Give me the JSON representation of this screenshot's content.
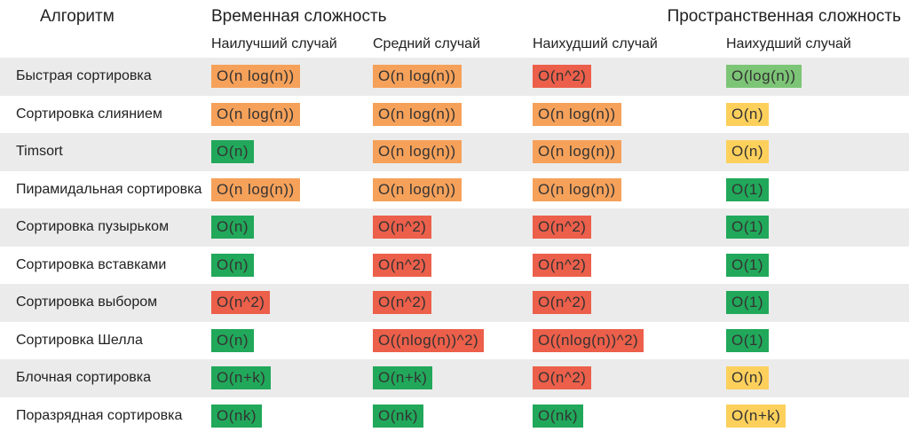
{
  "header": {
    "algorithm": "Алгоритм",
    "time": "Временная сложность",
    "space": "Пространственная сложность",
    "columns": [
      "Наилучший случай",
      "Средний случай",
      "Наихудший случай",
      "Наихудший случай"
    ]
  },
  "rows": [
    {
      "name": "Быстрая сортировка",
      "cells": [
        {
          "text": "O(n log(n))",
          "color": "#f6a15a"
        },
        {
          "text": "O(n log(n))",
          "color": "#f6a15a"
        },
        {
          "text": "O(n^2)",
          "color": "#ec5f4a"
        },
        {
          "text": "O(log(n))",
          "color": "#7cc576"
        }
      ]
    },
    {
      "name": "Сортировка слиянием",
      "cells": [
        {
          "text": "O(n log(n))",
          "color": "#f6a15a"
        },
        {
          "text": "O(n log(n))",
          "color": "#f6a15a"
        },
        {
          "text": "O(n log(n))",
          "color": "#f6a15a"
        },
        {
          "text": "O(n)",
          "color": "#fdd05c"
        }
      ]
    },
    {
      "name": "Timsort",
      "cells": [
        {
          "text": "O(n)",
          "color": "#21a85a"
        },
        {
          "text": "O(n log(n))",
          "color": "#f6a15a"
        },
        {
          "text": "O(n log(n))",
          "color": "#f6a15a"
        },
        {
          "text": "O(n)",
          "color": "#fdd05c"
        }
      ]
    },
    {
      "name": "Пирамидальная сортировка",
      "cells": [
        {
          "text": "O(n log(n))",
          "color": "#f6a15a"
        },
        {
          "text": "O(n log(n))",
          "color": "#f6a15a"
        },
        {
          "text": "O(n log(n))",
          "color": "#f6a15a"
        },
        {
          "text": "O(1)",
          "color": "#21a85a"
        }
      ]
    },
    {
      "name": "Сортировка пузырьком",
      "cells": [
        {
          "text": "O(n)",
          "color": "#21a85a"
        },
        {
          "text": "O(n^2)",
          "color": "#ec5f4a"
        },
        {
          "text": "O(n^2)",
          "color": "#ec5f4a"
        },
        {
          "text": "O(1)",
          "color": "#21a85a"
        }
      ]
    },
    {
      "name": "Сортировка вставками",
      "cells": [
        {
          "text": "O(n)",
          "color": "#21a85a"
        },
        {
          "text": "O(n^2)",
          "color": "#ec5f4a"
        },
        {
          "text": "O(n^2)",
          "color": "#ec5f4a"
        },
        {
          "text": "O(1)",
          "color": "#21a85a"
        }
      ]
    },
    {
      "name": "Сортировка выбором",
      "cells": [
        {
          "text": "O(n^2)",
          "color": "#ec5f4a"
        },
        {
          "text": "O(n^2)",
          "color": "#ec5f4a"
        },
        {
          "text": "O(n^2)",
          "color": "#ec5f4a"
        },
        {
          "text": "O(1)",
          "color": "#21a85a"
        }
      ]
    },
    {
      "name": "Сортировка Шелла",
      "cells": [
        {
          "text": "O(n)",
          "color": "#21a85a"
        },
        {
          "text": "O((nlog(n))^2)",
          "color": "#ec5f4a"
        },
        {
          "text": "O((nlog(n))^2)",
          "color": "#ec5f4a"
        },
        {
          "text": "O(1)",
          "color": "#21a85a"
        }
      ]
    },
    {
      "name": "Блочная сортировка",
      "cells": [
        {
          "text": "O(n+k)",
          "color": "#21a85a"
        },
        {
          "text": "O(n+k)",
          "color": "#21a85a"
        },
        {
          "text": "O(n^2)",
          "color": "#ec5f4a"
        },
        {
          "text": "O(n)",
          "color": "#fdd05c"
        }
      ]
    },
    {
      "name": "Поразрядная сортировка",
      "cells": [
        {
          "text": "O(nk)",
          "color": "#21a85a"
        },
        {
          "text": "O(nk)",
          "color": "#21a85a"
        },
        {
          "text": "O(nk)",
          "color": "#21a85a"
        },
        {
          "text": "O(n+k)",
          "color": "#fdd05c"
        }
      ]
    }
  ]
}
